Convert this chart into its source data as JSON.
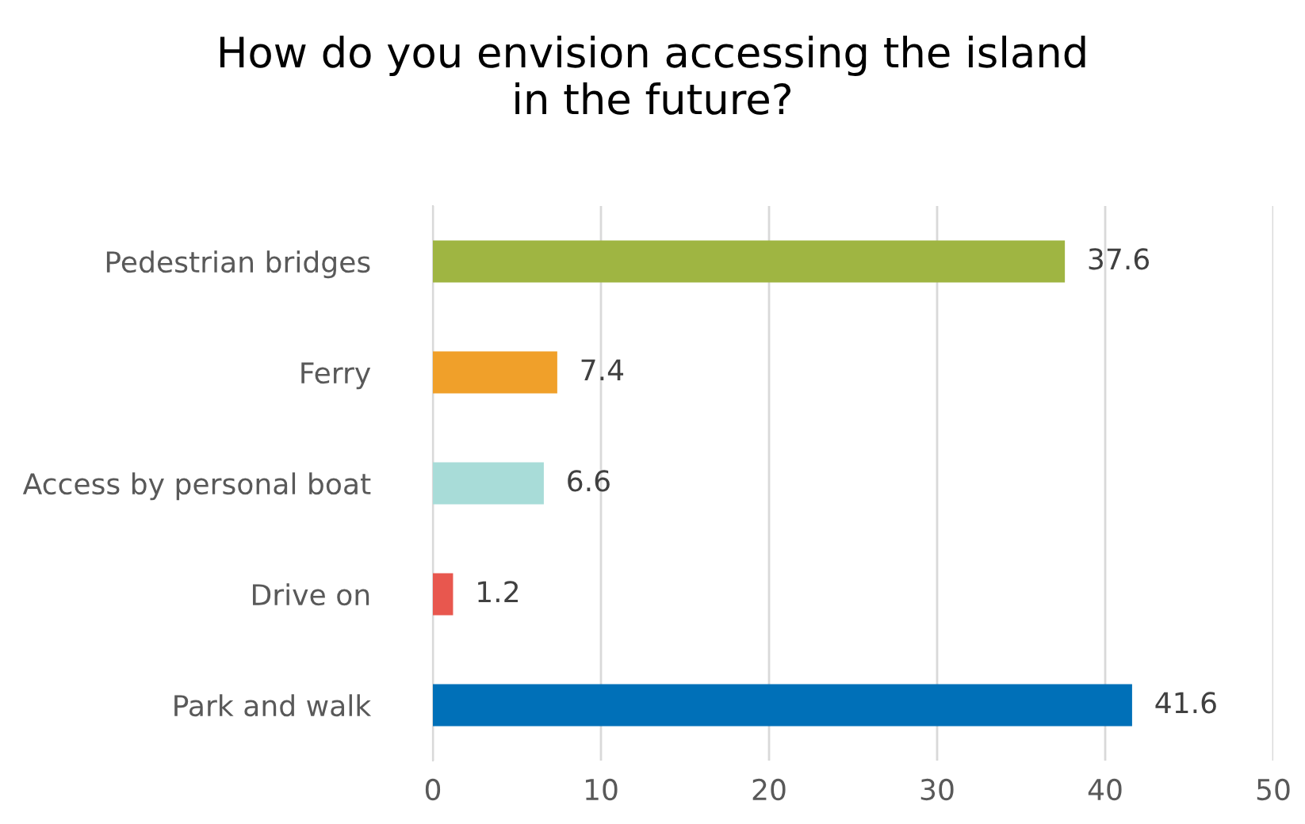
{
  "chart_data": {
    "type": "bar",
    "orientation": "horizontal",
    "title": "How do you envision accessing the island\nin the future?",
    "categories": [
      "Pedestrian bridges",
      "Ferry",
      "Access by personal boat",
      "Drive on",
      "Park and walk"
    ],
    "values": [
      37.6,
      7.4,
      6.6,
      1.2,
      41.6
    ],
    "colors": [
      "#9fb542",
      "#f0a02a",
      "#a8dcd8",
      "#e8574e",
      "#0070b8"
    ],
    "xlim": [
      0,
      50
    ],
    "xticks": [
      0,
      10,
      20,
      30,
      40,
      50
    ],
    "grid": "x",
    "data_labels": true
  }
}
